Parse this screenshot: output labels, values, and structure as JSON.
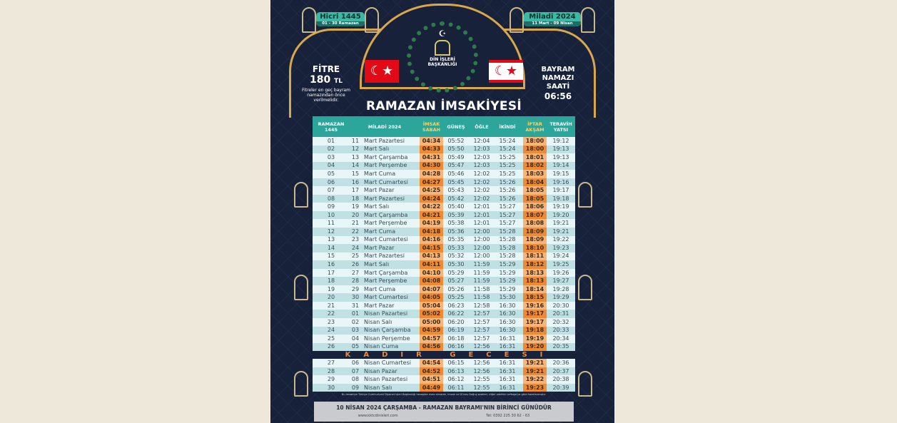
{
  "header": {
    "hicri": {
      "title": "Hicri 1445",
      "sub": "01 - 30 Ramazan"
    },
    "miladi": {
      "title": "Miladi 2024",
      "sub": "11 Mart - 09 Nisan"
    },
    "logo_text": "DİN İŞLERİ BAŞKANLIĞI",
    "fitre": {
      "label": "FİTRE",
      "amount": "180",
      "currency": "TL",
      "note": "Fitreler en geç bayram namazından önce verilmelidir."
    },
    "bayram": {
      "l1": "BAYRAM",
      "l2": "NAMAZI",
      "l3": "SAATİ",
      "time": "06:56"
    },
    "title": "RAMAZAN İMSAKİYESİ",
    "colors": {
      "background": "#17213a",
      "gold": "#d9a84a",
      "teal": "#2ca59b",
      "orange": "#ef8a33"
    }
  },
  "table": {
    "columns": [
      "RAMAZAN 1445",
      "MİLADİ 2024",
      "İMSAK SABAH",
      "GÜNEŞ",
      "ÖĞLE",
      "İKİNDİ",
      "İFTAR AKŞAM",
      "TERAVİH YATSI"
    ],
    "rows": [
      [
        "01",
        "11",
        "Mart Pazartesi",
        "04:34",
        "05:52",
        "12:04",
        "15:24",
        "18:00",
        "19:12"
      ],
      [
        "02",
        "12",
        "Mart Salı",
        "04:33",
        "05:50",
        "12:03",
        "15:24",
        "18:00",
        "19:13"
      ],
      [
        "03",
        "13",
        "Mart Çarşamba",
        "04:31",
        "05:49",
        "12:03",
        "15:25",
        "18:01",
        "19:13"
      ],
      [
        "04",
        "14",
        "Mart Perşembe",
        "04:30",
        "05:47",
        "12:03",
        "15:25",
        "18:02",
        "19:14"
      ],
      [
        "05",
        "15",
        "Mart Cuma",
        "04:28",
        "05:46",
        "12:02",
        "15:25",
        "18:03",
        "19:15"
      ],
      [
        "06",
        "16",
        "Mart Cumartesi",
        "04:27",
        "05:45",
        "12:02",
        "15:26",
        "18:04",
        "19:16"
      ],
      [
        "07",
        "17",
        "Mart Pazar",
        "04:25",
        "05:43",
        "12:02",
        "15:26",
        "18:05",
        "19:17"
      ],
      [
        "08",
        "18",
        "Mart Pazartesi",
        "04:24",
        "05:42",
        "12:02",
        "15:26",
        "18:05",
        "19:18"
      ],
      [
        "09",
        "19",
        "Mart Salı",
        "04:22",
        "05:40",
        "12:01",
        "15:27",
        "18:06",
        "19:19"
      ],
      [
        "10",
        "20",
        "Mart Çarşamba",
        "04:21",
        "05:39",
        "12:01",
        "15:27",
        "18:07",
        "19:20"
      ],
      [
        "11",
        "21",
        "Mart Perşembe",
        "04:19",
        "05:38",
        "12:01",
        "15:27",
        "18:08",
        "19:21"
      ],
      [
        "12",
        "22",
        "Mart Cuma",
        "04:18",
        "05:36",
        "12:00",
        "15:28",
        "18:09",
        "19:21"
      ],
      [
        "13",
        "23",
        "Mart Cumartesi",
        "04:16",
        "05:35",
        "12:00",
        "15:28",
        "18:09",
        "19:22"
      ],
      [
        "14",
        "24",
        "Mart Pazar",
        "04:15",
        "05:33",
        "12:00",
        "15:28",
        "18:10",
        "19:23"
      ],
      [
        "15",
        "25",
        "Mart Pazartesi",
        "04:13",
        "05:32",
        "12:00",
        "15:28",
        "18:11",
        "19:24"
      ],
      [
        "16",
        "26",
        "Mart Salı",
        "04:11",
        "05:30",
        "11:59",
        "15:29",
        "18:12",
        "19:25"
      ],
      [
        "17",
        "27",
        "Mart Çarşamba",
        "04:10",
        "05:29",
        "11:59",
        "15:29",
        "18:13",
        "19:26"
      ],
      [
        "18",
        "28",
        "Mart Perşembe",
        "04:08",
        "05:27",
        "11:59",
        "15:29",
        "18:13",
        "19:27"
      ],
      [
        "19",
        "29",
        "Mart Cuma",
        "04:07",
        "05:26",
        "11:58",
        "15:29",
        "18:14",
        "19:28"
      ],
      [
        "20",
        "30",
        "Mart Cumartesi",
        "04:05",
        "05:25",
        "11:58",
        "15:30",
        "18:15",
        "19:29"
      ],
      [
        "21",
        "31",
        "Mart Pazar",
        "05:04",
        "06:23",
        "12:58",
        "16:30",
        "19:16",
        "20:30"
      ],
      [
        "22",
        "01",
        "Nisan Pazartesi",
        "05:02",
        "06:22",
        "12:57",
        "16:30",
        "19:17",
        "20:31"
      ],
      [
        "23",
        "02",
        "Nisan Salı",
        "05:00",
        "06:20",
        "12:57",
        "16:30",
        "19:17",
        "20:32"
      ],
      [
        "24",
        "03",
        "Nisan Çarşamba",
        "04:59",
        "06:19",
        "12:57",
        "16:30",
        "19:18",
        "20:33"
      ],
      [
        "25",
        "04",
        "Nisan Perşembe",
        "04:57",
        "06:18",
        "12:57",
        "16:31",
        "19:19",
        "20:34"
      ],
      [
        "26",
        "05",
        "Nisan Cuma",
        "04:56",
        "06:16",
        "12:56",
        "16:31",
        "19:20",
        "20:35"
      ]
    ],
    "kadir": "KADİR GECESİ",
    "rows2": [
      [
        "27",
        "06",
        "Nisan Cumartesi",
        "04:54",
        "06:15",
        "12:56",
        "16:31",
        "19:21",
        "20:36"
      ],
      [
        "28",
        "07",
        "Nisan Pazar",
        "04:52",
        "06:13",
        "12:56",
        "16:31",
        "19:21",
        "20:37"
      ],
      [
        "29",
        "08",
        "Nisan Pazartesi",
        "04:51",
        "06:12",
        "12:55",
        "16:31",
        "19:22",
        "20:38"
      ],
      [
        "30",
        "09",
        "Nisan Salı",
        "04:49",
        "06:11",
        "12:55",
        "16:31",
        "19:23",
        "20:39"
      ]
    ]
  },
  "footer": {
    "note": "Bu imsakiye Türkiye Cumhuriyeti Diyanet İşleri Başkanlığı hesapları esas alınarak, İmsak ve Güneş Doğuş saatleri, diğer vakitler Lefkoşa'ya göre hazırlanmıştır.",
    "banner": "10 NİSAN 2024 ÇARŞAMBA - RAMAZAN BAYRAMI'NIN BİRİNCİ GÜNÜDÜR",
    "website": "www.kktcdinisleri.com",
    "phone": "Tel: 0392 225 30 62 - 63"
  }
}
